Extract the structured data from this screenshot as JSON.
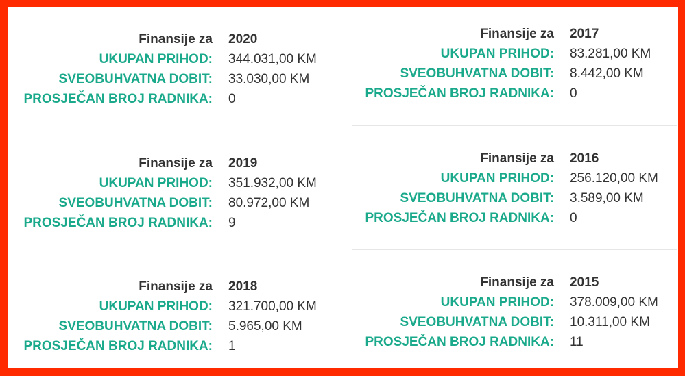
{
  "labels": {
    "heading": "Finansije za",
    "revenue": "UKUPAN PRIHOD:",
    "profit": "SVEOBUHVATNA DOBIT:",
    "employees": "PROSJEČAN BROJ RADNIKA:"
  },
  "colors": {
    "border": "#ff2a00",
    "label_accent": "#1aa98b",
    "text": "#333333"
  },
  "years": [
    {
      "year": "2020",
      "revenue": "344.031,00 KM",
      "profit": "33.030,00 KM",
      "employees": "0"
    },
    {
      "year": "2019",
      "revenue": "351.932,00 KM",
      "profit": "80.972,00 KM",
      "employees": "9"
    },
    {
      "year": "2018",
      "revenue": "321.700,00 KM",
      "profit": "5.965,00 KM",
      "employees": "1"
    },
    {
      "year": "2017",
      "revenue": "83.281,00 KM",
      "profit": "8.442,00 KM",
      "employees": "0"
    },
    {
      "year": "2016",
      "revenue": "256.120,00 KM",
      "profit": "3.589,00 KM",
      "employees": "0"
    },
    {
      "year": "2015",
      "revenue": "378.009,00 KM",
      "profit": "10.311,00 KM",
      "employees": "11"
    }
  ]
}
